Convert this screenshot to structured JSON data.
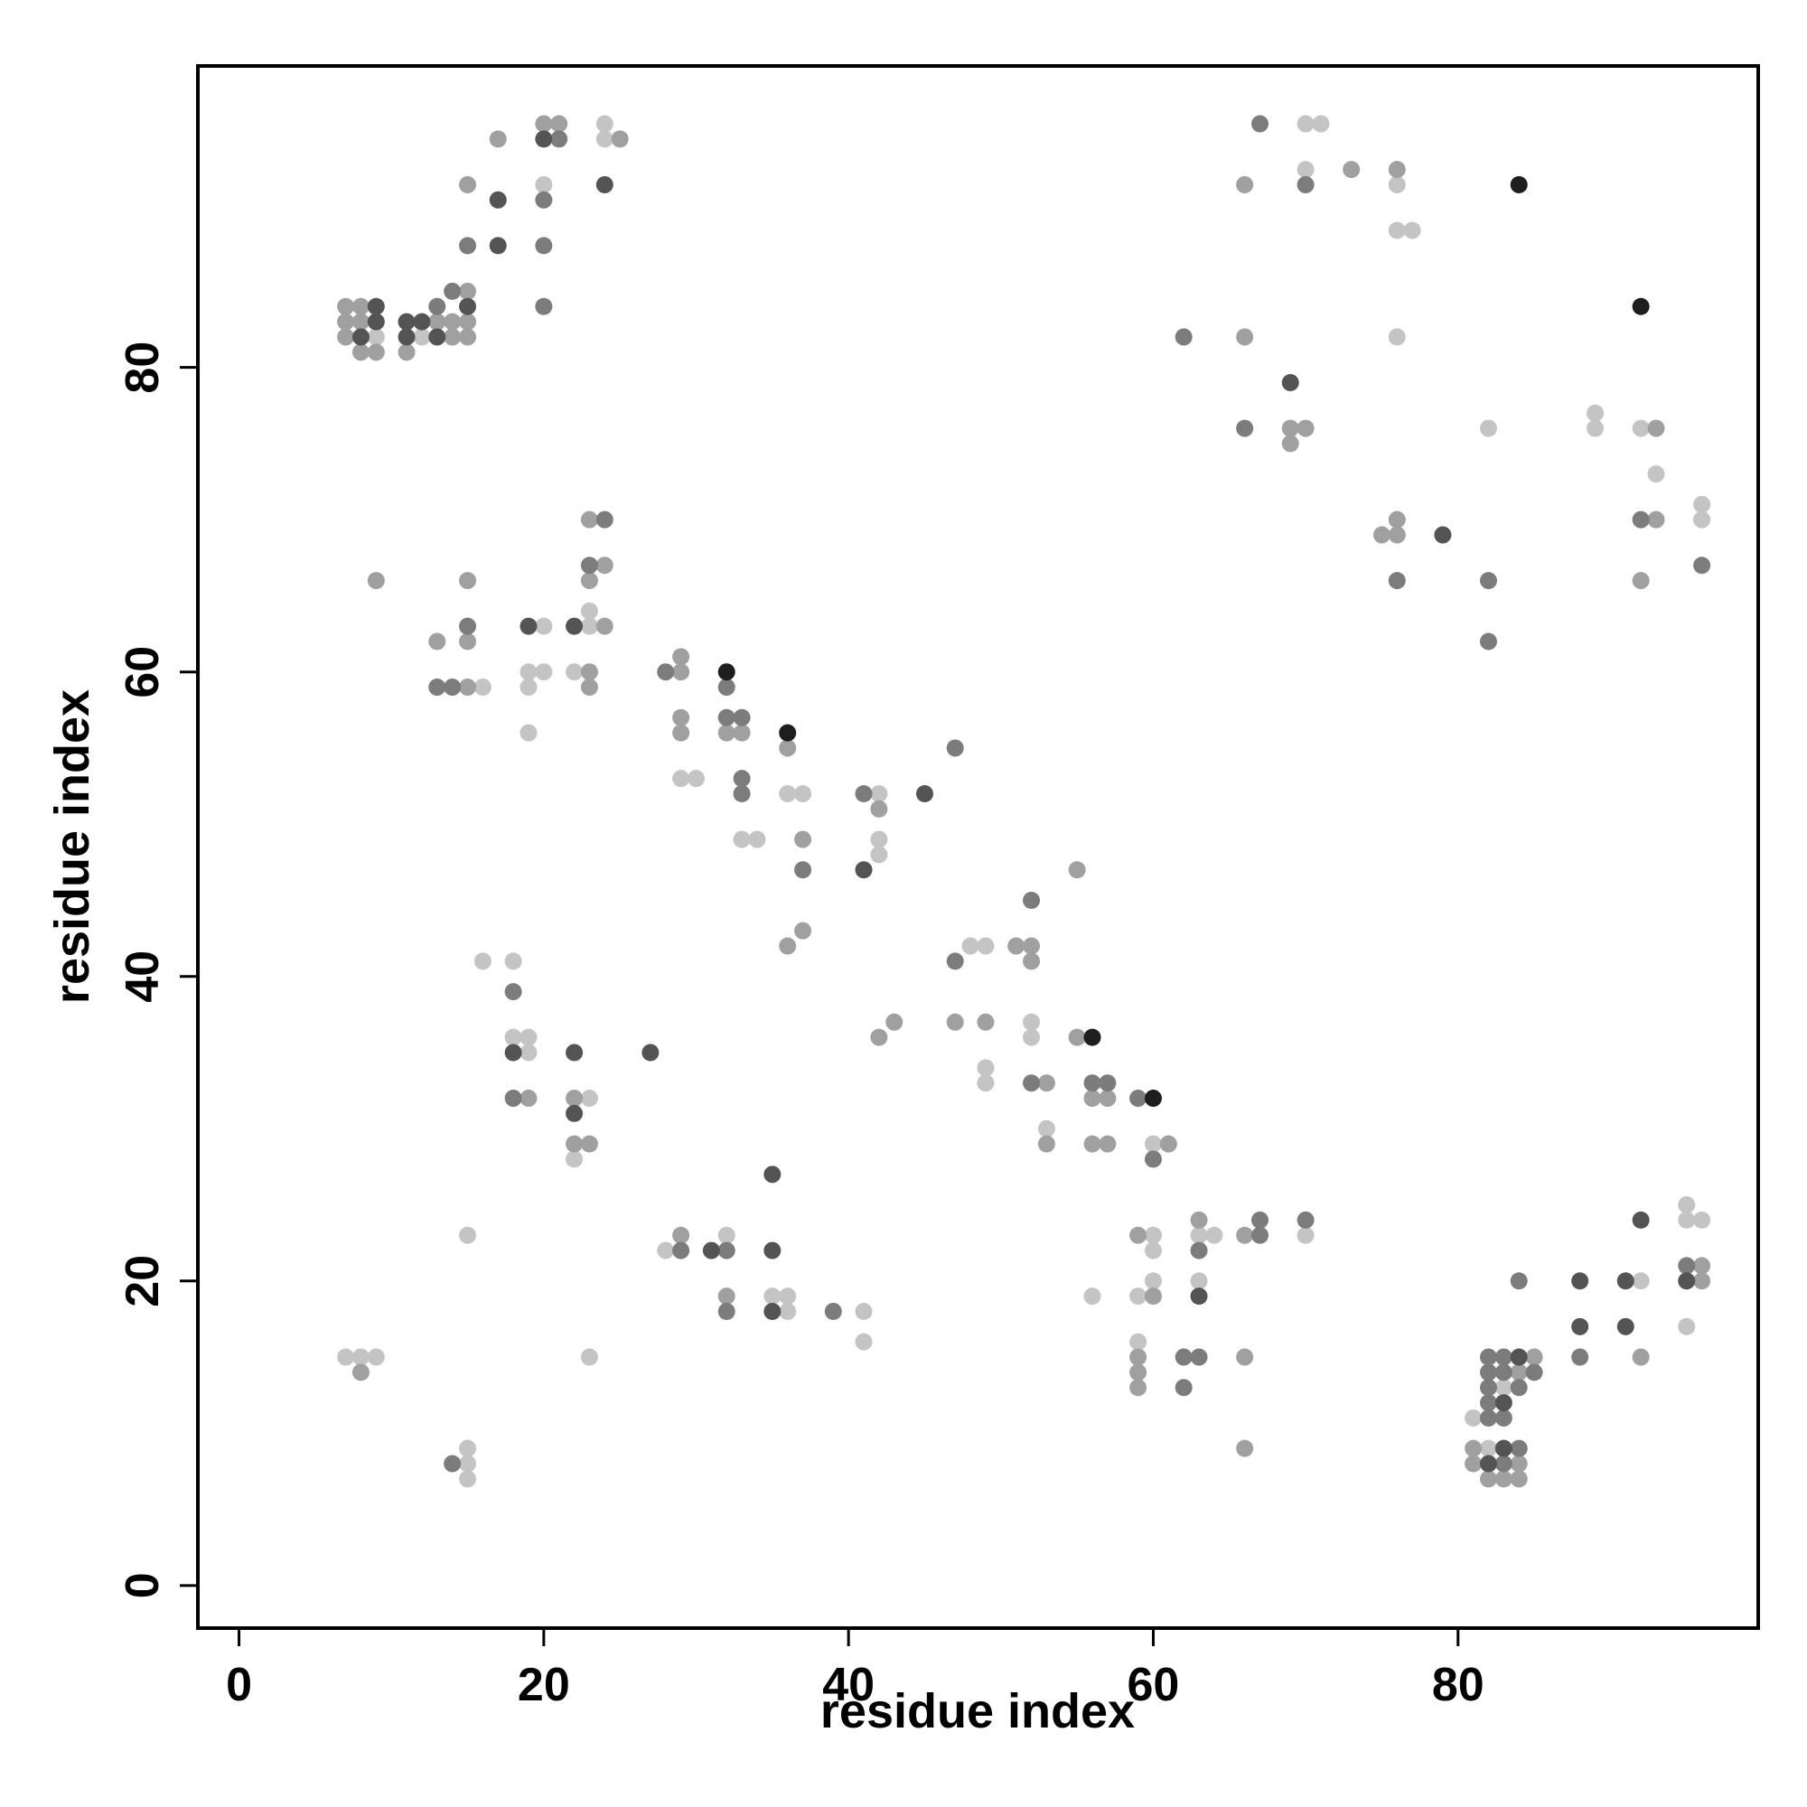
{
  "chart_data": {
    "type": "scatter",
    "xlabel": "residue index",
    "ylabel": "residue index",
    "xlim": [
      -2.7,
      99.7
    ],
    "ylim": [
      -2.8,
      99.8
    ],
    "xticks": [
      0,
      20,
      40,
      60,
      80
    ],
    "yticks": [
      0,
      20,
      40,
      60,
      80
    ],
    "grid": false,
    "series": [
      {
        "color": "#c4c4c4",
        "x": [
          9,
          12,
          20,
          24,
          24,
          70,
          71,
          70,
          76,
          76,
          77,
          76,
          82,
          89,
          92,
          89,
          93,
          96,
          96,
          23,
          20,
          23,
          19,
          20,
          22,
          16,
          19,
          19,
          29,
          30,
          36,
          37,
          42,
          33,
          34,
          42,
          42,
          48,
          49,
          16,
          18,
          52,
          18,
          19,
          52,
          19,
          49,
          49,
          23,
          53,
          60,
          22,
          95,
          95,
          96,
          15,
          32,
          60,
          63,
          64,
          70,
          28,
          60,
          60,
          63,
          92,
          35,
          36,
          56,
          59,
          36,
          41,
          95,
          41,
          59,
          7,
          8,
          9,
          23,
          83,
          81,
          15,
          82,
          15,
          15
        ],
        "y": [
          82,
          82,
          92,
          95,
          96,
          96,
          96,
          93,
          92,
          89,
          89,
          82,
          76,
          76,
          76,
          77,
          73,
          71,
          70,
          64,
          63,
          63,
          60,
          60,
          60,
          59,
          59,
          56,
          53,
          53,
          52,
          52,
          52,
          49,
          49,
          49,
          48,
          42,
          42,
          41,
          41,
          37,
          36,
          36,
          36,
          35,
          34,
          33,
          32,
          30,
          29,
          28,
          25,
          24,
          24,
          23,
          23,
          23,
          23,
          23,
          23,
          22,
          22,
          20,
          20,
          20,
          19,
          19,
          19,
          19,
          18,
          18,
          17,
          16,
          16,
          15,
          15,
          15,
          15,
          13,
          11,
          9,
          9,
          8,
          7
        ]
      },
      {
        "color": "#a0a0a0",
        "x": [
          7,
          8,
          15,
          7,
          8,
          13,
          14,
          15,
          7,
          14,
          15,
          8,
          9,
          11,
          15,
          17,
          25,
          20,
          21,
          73,
          76,
          66,
          66,
          69,
          70,
          93,
          69,
          76,
          93,
          75,
          76,
          92,
          9,
          15,
          23,
          24,
          23,
          24,
          13,
          15,
          23,
          29,
          15,
          23,
          29,
          29,
          32,
          33,
          29,
          36,
          42,
          37,
          55,
          37,
          36,
          51,
          52,
          52,
          43,
          47,
          49,
          42,
          55,
          53,
          19,
          22,
          56,
          57,
          22,
          23,
          53,
          56,
          57,
          61,
          63,
          29,
          59,
          66,
          96,
          96,
          32,
          60,
          59,
          66,
          85,
          92,
          8,
          59,
          84,
          59,
          66,
          81,
          81,
          84,
          82,
          83,
          84
        ],
        "y": [
          84,
          84,
          85,
          83,
          83,
          83,
          83,
          83,
          82,
          82,
          82,
          81,
          81,
          81,
          92,
          95,
          95,
          96,
          96,
          93,
          93,
          92,
          82,
          76,
          76,
          76,
          75,
          70,
          70,
          69,
          69,
          66,
          66,
          66,
          70,
          67,
          66,
          63,
          62,
          62,
          60,
          60,
          59,
          59,
          61,
          56,
          56,
          56,
          57,
          55,
          51,
          49,
          47,
          43,
          42,
          42,
          42,
          41,
          37,
          37,
          37,
          36,
          36,
          33,
          32,
          32,
          32,
          32,
          29,
          29,
          29,
          29,
          29,
          29,
          24,
          23,
          23,
          23,
          21,
          20,
          19,
          19,
          15,
          15,
          15,
          15,
          14,
          14,
          14,
          13,
          9,
          9,
          8,
          8,
          7,
          7,
          7
        ]
      },
      {
        "color": "#7c7c7c",
        "x": [
          13,
          20,
          14,
          15,
          20,
          20,
          21,
          67,
          70,
          62,
          66,
          92,
          96,
          76,
          82,
          82,
          24,
          23,
          15,
          28,
          13,
          14,
          32,
          32,
          33,
          33,
          33,
          41,
          47,
          37,
          52,
          47,
          18,
          52,
          56,
          57,
          18,
          59,
          60,
          67,
          70,
          67,
          29,
          32,
          63,
          84,
          95,
          32,
          39,
          62,
          63,
          82,
          83,
          88,
          82,
          83,
          85,
          62,
          82,
          84,
          82,
          82,
          83,
          84,
          14,
          83
        ],
        "y": [
          84,
          84,
          85,
          88,
          88,
          91,
          95,
          96,
          92,
          82,
          76,
          70,
          67,
          66,
          66,
          62,
          70,
          67,
          63,
          60,
          59,
          59,
          59,
          57,
          57,
          53,
          52,
          52,
          55,
          47,
          45,
          41,
          39,
          33,
          33,
          33,
          32,
          32,
          28,
          24,
          24,
          23,
          22,
          22,
          22,
          20,
          21,
          18,
          18,
          15,
          15,
          15,
          15,
          15,
          14,
          14,
          14,
          13,
          13,
          13,
          12,
          11,
          11,
          9,
          8,
          8
        ]
      },
      {
        "color": "#545454",
        "x": [
          9,
          15,
          9,
          11,
          12,
          8,
          11,
          13,
          17,
          17,
          20,
          24,
          69,
          79,
          19,
          22,
          41,
          45,
          18,
          22,
          27,
          22,
          35,
          92,
          31,
          35,
          88,
          91,
          95,
          63,
          35,
          88,
          91,
          84,
          83,
          83,
          82
        ],
        "y": [
          84,
          84,
          83,
          83,
          83,
          82,
          82,
          82,
          91,
          88,
          95,
          92,
          79,
          69,
          63,
          63,
          47,
          52,
          35,
          35,
          35,
          31,
          27,
          24,
          22,
          22,
          20,
          20,
          20,
          19,
          18,
          17,
          17,
          15,
          12,
          9,
          8
        ]
      },
      {
        "color": "#1e1e1e",
        "x": [
          84,
          92,
          32,
          36,
          56,
          60
        ],
        "y": [
          92,
          84,
          60,
          56,
          36,
          32
        ]
      }
    ]
  }
}
